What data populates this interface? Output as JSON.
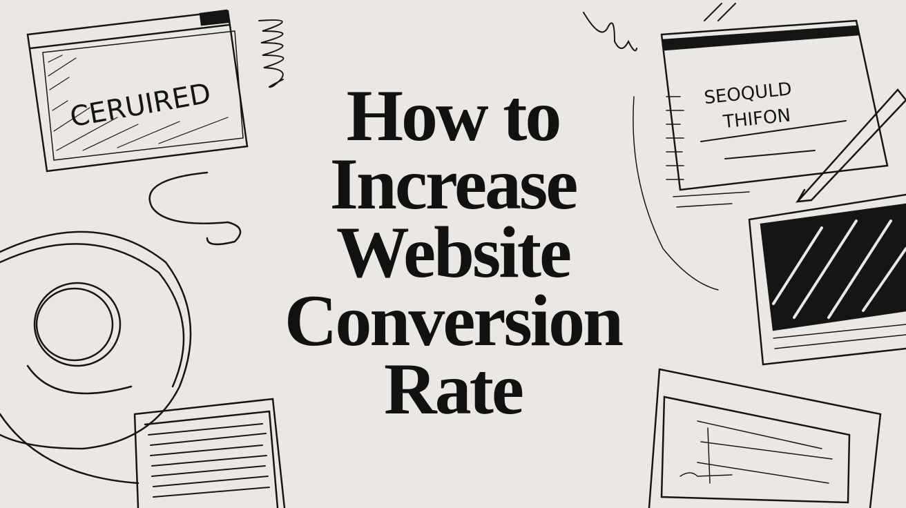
{
  "title_lines": [
    "How to",
    "Increase",
    "Website",
    "Conversion",
    "Rate"
  ],
  "sketch_labels": {
    "left_window": "CERUIRED",
    "right_window_line1": "SEOQULD",
    "right_window_line2": "THIFON"
  },
  "colors": {
    "background": "#ebe7e2",
    "ink": "#111111"
  }
}
